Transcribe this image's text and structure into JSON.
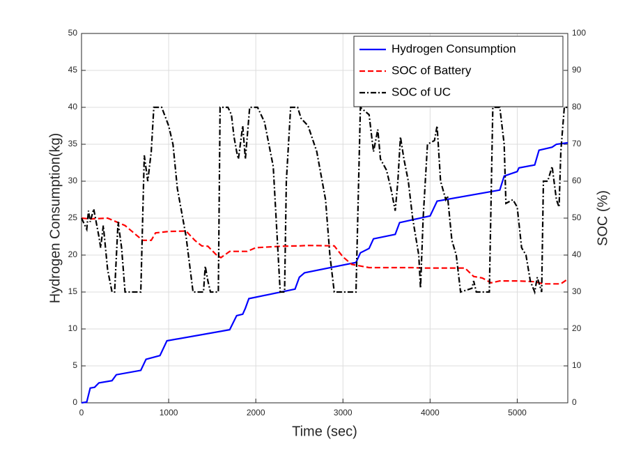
{
  "chart_data": {
    "type": "line",
    "xlabel": "Time (sec)",
    "ylabel": "Hydrogen Consumption(kg)",
    "y2label": "SOC (%)",
    "xlim": [
      0,
      5580
    ],
    "xticks": [
      0,
      1000,
      2000,
      3000,
      4000,
      5000
    ],
    "ylim": [
      0,
      50
    ],
    "yticks": [
      0,
      5,
      10,
      15,
      20,
      25,
      30,
      35,
      40,
      45,
      50
    ],
    "y2lim": [
      0,
      100
    ],
    "y2ticks": [
      0,
      10,
      20,
      30,
      40,
      50,
      60,
      70,
      80,
      90,
      100
    ],
    "grid": true,
    "legend": "upper right",
    "series": [
      {
        "name": "Hydrogen Consumption",
        "color": "#0000ff",
        "style": "solid",
        "x": [
          0,
          60,
          100,
          150,
          200,
          350,
          400,
          680,
          740,
          900,
          980,
          1700,
          1780,
          1850,
          1880,
          1920,
          2450,
          2500,
          2560,
          3150,
          3200,
          3300,
          3350,
          3600,
          3650,
          4000,
          4080,
          4800,
          4850,
          5000,
          5020,
          5200,
          5250,
          5400,
          5450,
          5580
        ],
        "values": [
          0,
          0.1,
          2,
          2.1,
          2.7,
          3.0,
          3.8,
          4.4,
          5.9,
          6.4,
          8.4,
          9.9,
          11.8,
          12,
          12.8,
          14.1,
          15.4,
          17,
          17.6,
          19,
          20.3,
          20.9,
          22.2,
          22.8,
          24.4,
          25.3,
          27.3,
          28.8,
          30.7,
          31.3,
          31.8,
          32.2,
          34.2,
          34.6,
          35.0,
          35.2
        ]
      },
      {
        "name": "SOC of Battery",
        "color": "#ff0000",
        "style": "dashed",
        "axis": "y2",
        "x": [
          0,
          100,
          300,
          400,
          500,
          700,
          800,
          850,
          1000,
          1200,
          1300,
          1380,
          1450,
          1550,
          1600,
          1700,
          1900,
          1950,
          2000,
          2300,
          2500,
          2600,
          2900,
          3000,
          3100,
          3300,
          3800,
          3900,
          4000,
          4400,
          4500,
          4600,
          4700,
          4800,
          5000,
          5200,
          5300,
          5500,
          5580
        ],
        "values": [
          50,
          49.8,
          50,
          49,
          48,
          44,
          44,
          46,
          46.4,
          46.5,
          44,
          42.5,
          42.4,
          40,
          39.3,
          41,
          41,
          41.5,
          42,
          42.4,
          42.5,
          42.6,
          42.5,
          39.5,
          37.5,
          36.6,
          36.6,
          36.5,
          36.5,
          36.5,
          34.2,
          33.8,
          32.5,
          33,
          33,
          32.8,
          32.2,
          32.2,
          33.5
        ]
      },
      {
        "name": "SOC of UC",
        "color": "#000000",
        "style": "dashdot",
        "axis": "y2",
        "x": [
          0,
          60,
          80,
          100,
          140,
          200,
          220,
          250,
          300,
          350,
          380,
          420,
          460,
          500,
          680,
          720,
          760,
          800,
          830,
          920,
          1000,
          1050,
          1100,
          1200,
          1280,
          1400,
          1420,
          1450,
          1480,
          1570,
          1590,
          1680,
          1720,
          1750,
          1780,
          1800,
          1850,
          1880,
          1930,
          2020,
          2100,
          2200,
          2280,
          2330,
          2350,
          2400,
          2480,
          2520,
          2600,
          2700,
          2800,
          2850,
          2900,
          3150,
          3200,
          3300,
          3350,
          3400,
          3430,
          3500,
          3550,
          3600,
          3630,
          3660,
          3700,
          3750,
          3800,
          3870,
          3890,
          3920,
          3970,
          4050,
          4080,
          4120,
          4180,
          4200,
          4250,
          4300,
          4350,
          4480,
          4500,
          4530,
          4680,
          4720,
          4800,
          4850,
          4870,
          4950,
          5000,
          5050,
          5100,
          5150,
          5200,
          5230,
          5280,
          5300,
          5350,
          5400,
          5450,
          5480,
          5500,
          5540,
          5580
        ],
        "values": [
          50,
          47,
          52,
          49,
          52.5,
          45,
          42,
          48,
          36,
          30,
          30,
          49,
          42,
          30,
          30,
          67,
          60,
          68,
          80,
          80,
          75,
          70,
          58,
          45,
          30,
          30,
          37,
          33,
          30,
          30,
          80,
          80,
          78,
          72,
          68,
          66,
          75,
          66,
          80,
          80,
          76,
          64,
          30,
          30,
          60,
          80,
          80,
          77,
          75,
          68,
          55,
          40,
          30,
          30,
          80,
          78,
          68,
          74,
          66,
          63,
          58,
          52,
          60,
          72,
          66,
          60,
          50,
          40,
          31,
          50,
          70,
          71,
          75,
          60,
          55,
          56,
          44,
          40,
          30,
          31,
          33,
          30,
          30,
          80,
          80,
          70,
          54,
          55,
          53,
          42,
          40,
          33,
          30,
          34,
          30,
          60,
          60,
          64,
          55,
          53,
          68,
          80,
          80
        ]
      }
    ]
  }
}
